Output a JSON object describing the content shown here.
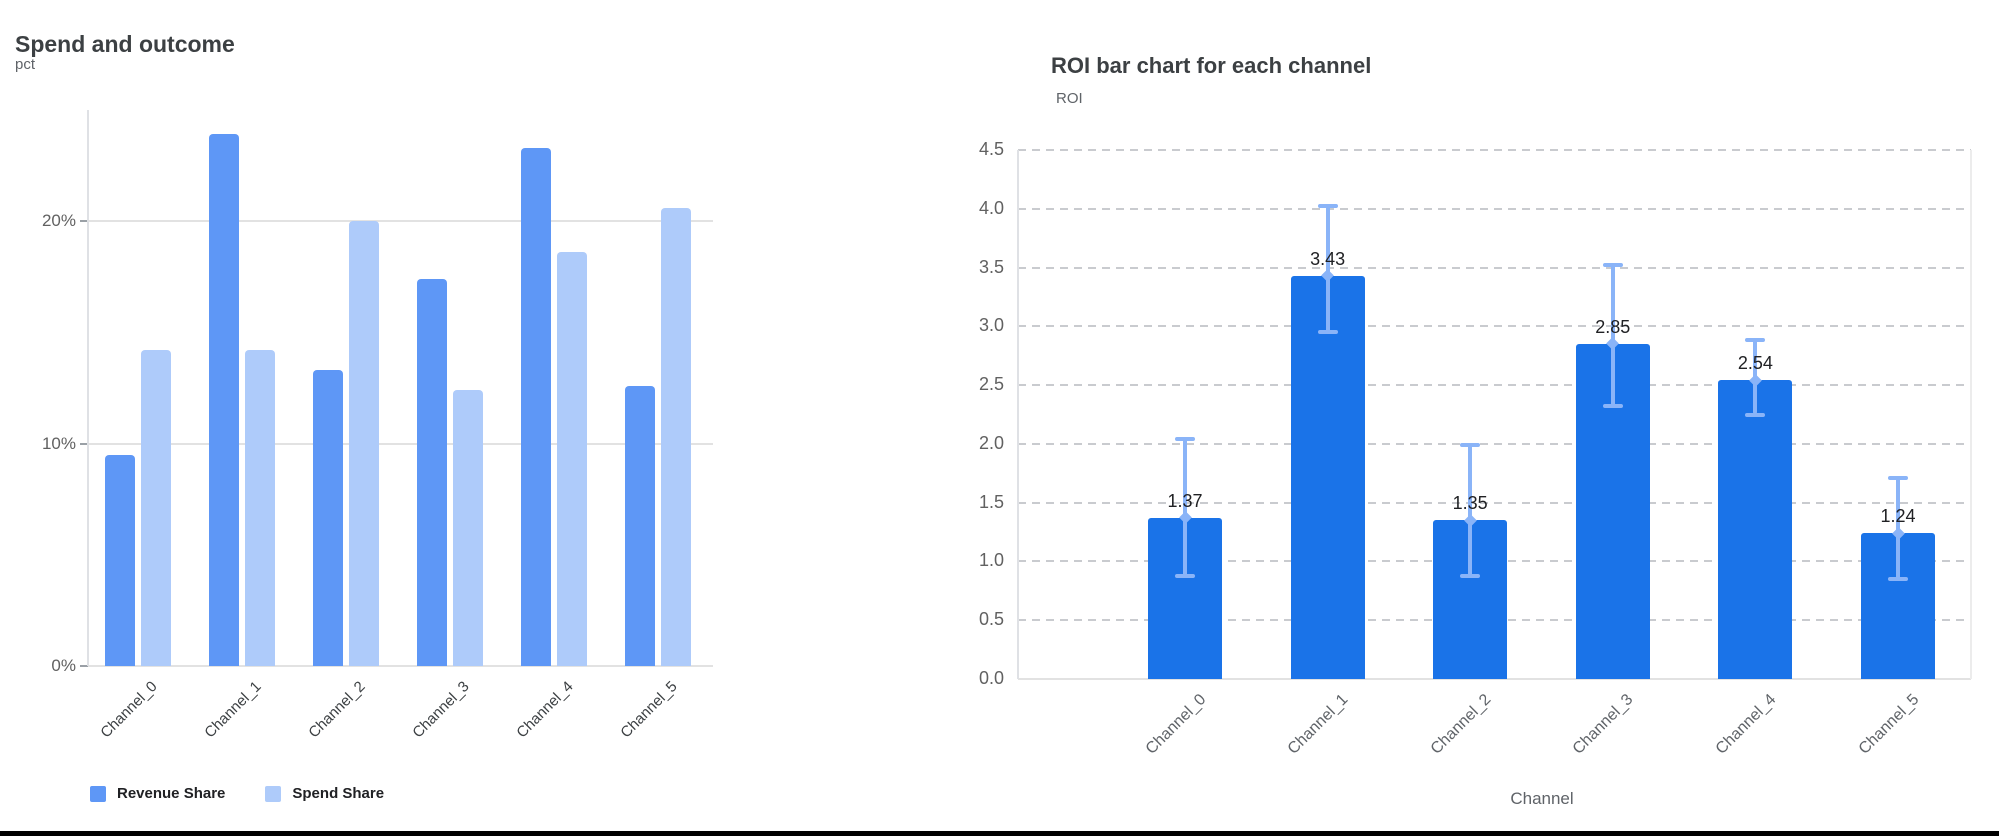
{
  "page": {
    "background": "#ffffff",
    "divider_color": "#000000"
  },
  "style": {
    "grid_solid_color": "#e2e2e2",
    "grid_dashed_color": "#c9cbcf",
    "axis_line_color": "#dfe1e5",
    "tick_text_color": "#616161",
    "title_color": "#3c4043",
    "unit_label_color": "#5f6368",
    "value_label_color": "#202124"
  },
  "chart_data": [
    {
      "type": "bar",
      "title": "Spend and outcome",
      "unit_label": "pct",
      "xlabel": "",
      "ylabel": "pct",
      "categories": [
        "Channel_0",
        "Channel_1",
        "Channel_2",
        "Channel_3",
        "Channel_4",
        "Channel_5"
      ],
      "series": [
        {
          "name": "Revenue Share",
          "color": "#5e97f6",
          "values": [
            9.5,
            23.9,
            13.3,
            17.4,
            23.3,
            12.6
          ]
        },
        {
          "name": "Spend Share",
          "color": "#aecbfa",
          "values": [
            14.2,
            14.2,
            20.0,
            12.4,
            18.6,
            20.6
          ]
        }
      ],
      "ylim": [
        0,
        25
      ],
      "ytick_values": [
        0,
        10,
        20
      ],
      "ytick_labels": [
        "0%",
        "10%",
        "20%"
      ],
      "grid": "solid",
      "legend_position": "bottom"
    },
    {
      "type": "bar",
      "title": "ROI bar chart for each channel",
      "unit_label": "ROI",
      "xlabel": "Channel",
      "ylabel": "ROI",
      "categories": [
        "Channel_0",
        "Channel_1",
        "Channel_2",
        "Channel_3",
        "Channel_4",
        "Channel_5"
      ],
      "values": [
        1.37,
        3.43,
        1.35,
        2.85,
        2.54,
        1.24
      ],
      "value_labels": [
        "1.37",
        "3.43",
        "1.35",
        "2.85",
        "2.54",
        "1.24"
      ],
      "error_low": [
        0.88,
        2.95,
        0.88,
        2.32,
        2.25,
        0.85
      ],
      "error_high": [
        2.04,
        4.02,
        1.99,
        3.52,
        2.88,
        1.71
      ],
      "bar_color": "#1a73e8",
      "error_color": "#8ab4f8",
      "ylim": [
        0,
        4.5
      ],
      "ytick_values": [
        0,
        0.5,
        1.0,
        1.5,
        2.0,
        2.5,
        3.0,
        3.5,
        4.0,
        4.5
      ],
      "ytick_labels": [
        "0.0",
        "0.5",
        "1.0",
        "1.5",
        "2.0",
        "2.5",
        "3.0",
        "3.5",
        "4.0",
        "4.5"
      ],
      "grid": "dashed",
      "legend_position": "none"
    }
  ]
}
